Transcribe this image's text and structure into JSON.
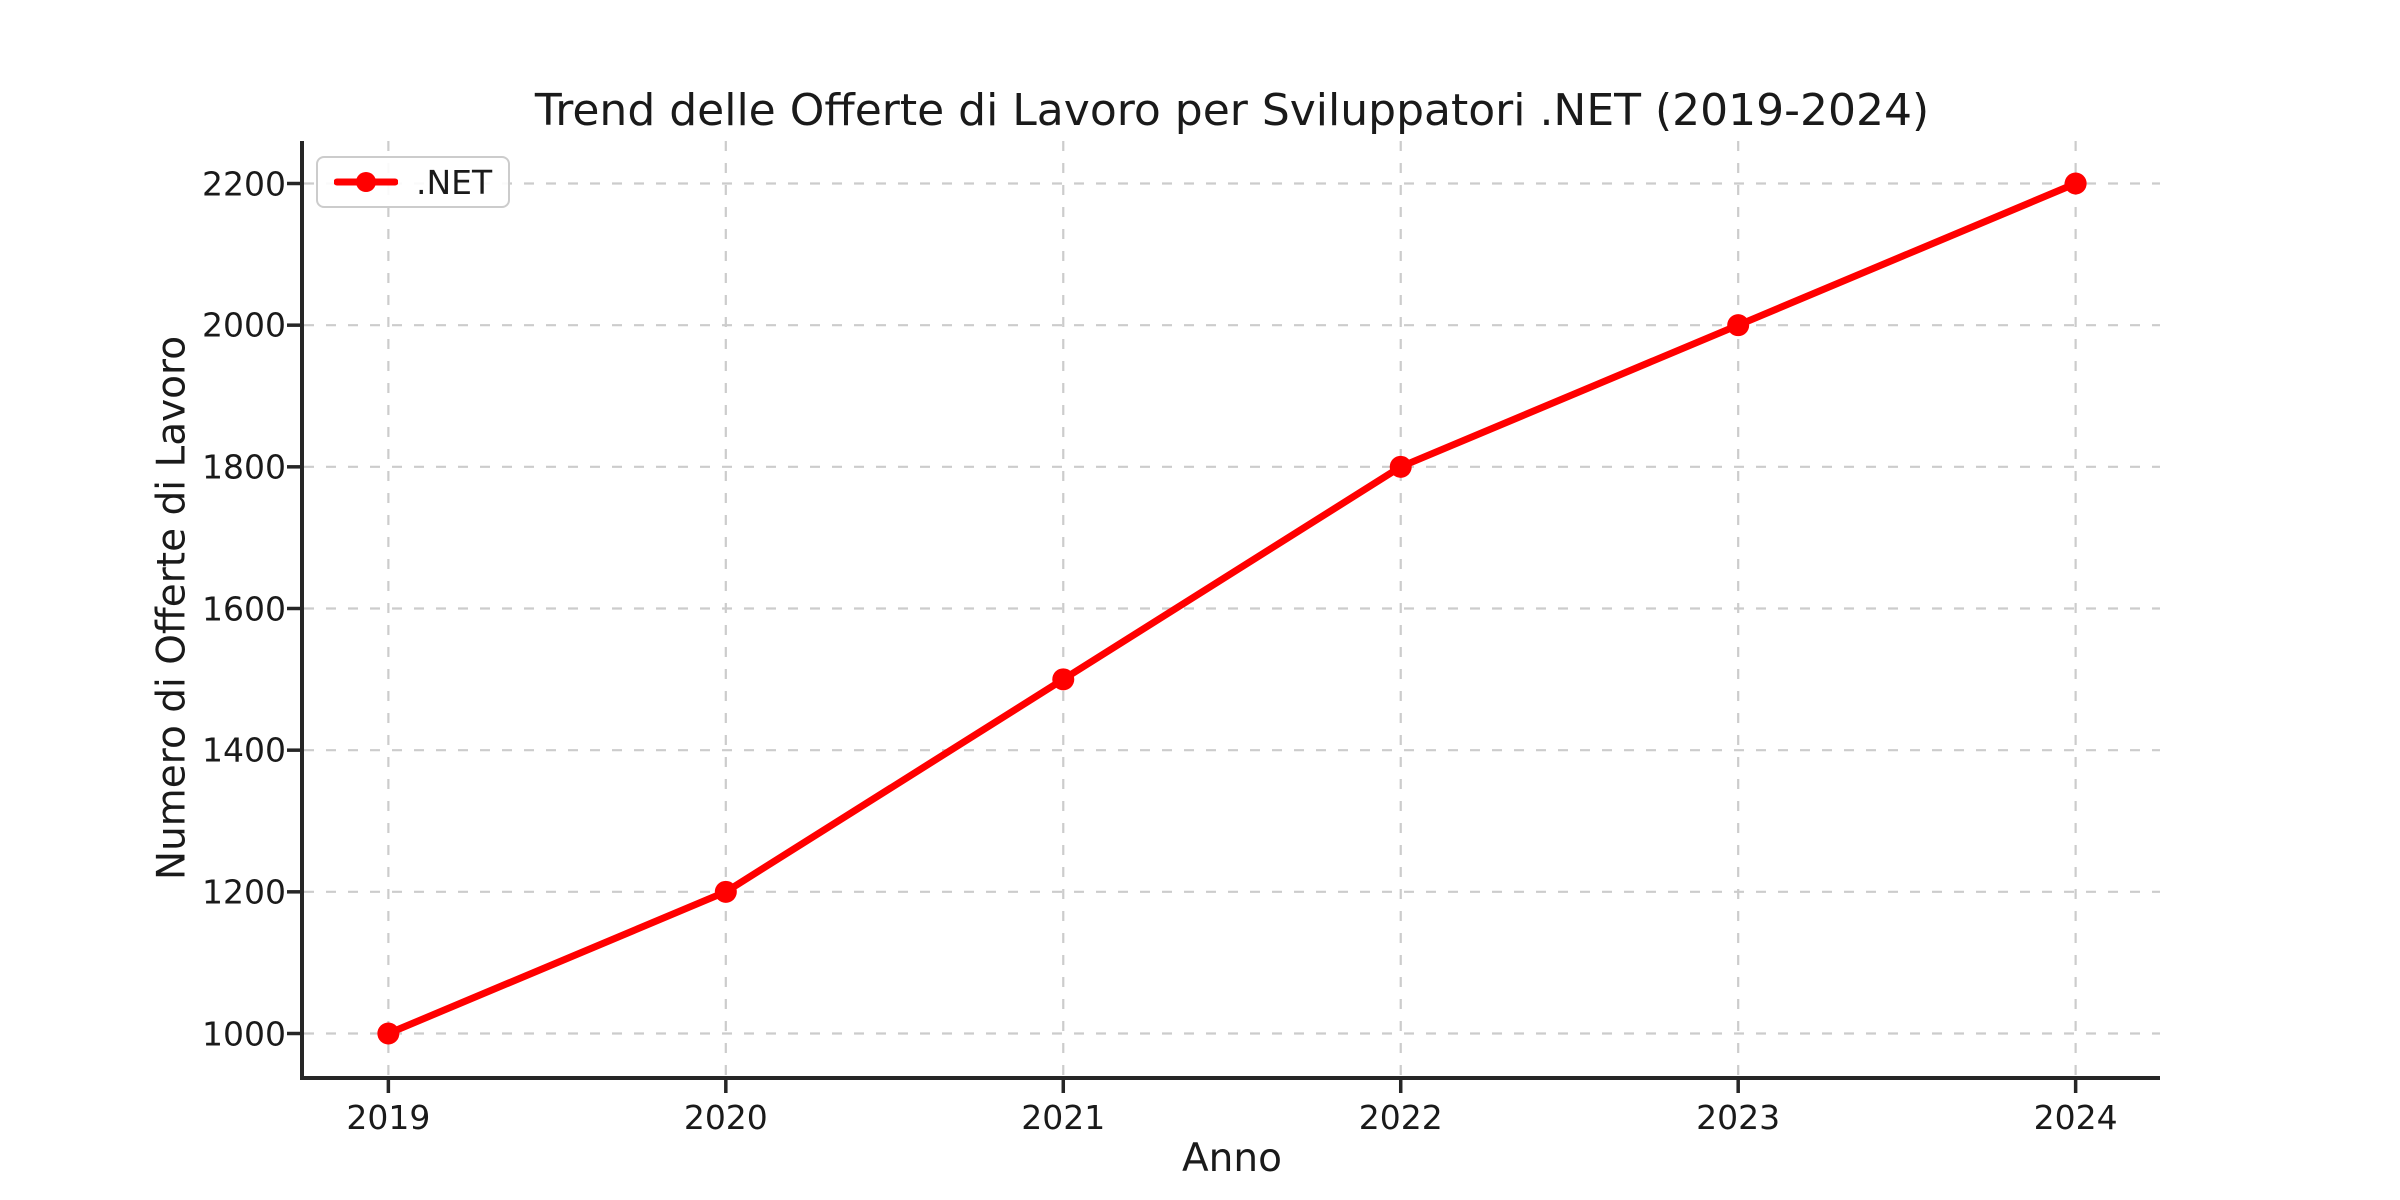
{
  "window": {
    "background": "#ffffff"
  },
  "chart_data": {
    "type": "line",
    "title": "Trend delle Offerte di Lavoro per Sviluppatori .NET (2019-2024)",
    "xlabel": "Anno",
    "ylabel": "Numero di Offerte di Lavoro",
    "x": [
      2019,
      2020,
      2021,
      2022,
      2023,
      2024
    ],
    "series": [
      {
        "name": ".NET",
        "color": "#ff0000",
        "marker": "circle",
        "values": [
          1000,
          1200,
          1500,
          1800,
          2000,
          2200
        ]
      }
    ],
    "xticks": [
      "2019",
      "2020",
      "2021",
      "2022",
      "2023",
      "2024"
    ],
    "yticks": [
      "1000",
      "1200",
      "1400",
      "1600",
      "1800",
      "2000",
      "2200"
    ],
    "xlim": [
      2018.75,
      2024.25
    ],
    "ylim": [
      940,
      2260
    ],
    "grid": true,
    "grid_style": "dashed",
    "legend": {
      "position": "upper-left",
      "entries": [
        ".NET"
      ]
    },
    "line_width": 7,
    "marker_radius": 11,
    "colors": {
      "line": "#ff0000",
      "grid": "#cccccc",
      "spine": "#262626",
      "text": "#1a1a1a",
      "legend_border": "#cccccc",
      "legend_background": "#ffffff"
    }
  }
}
